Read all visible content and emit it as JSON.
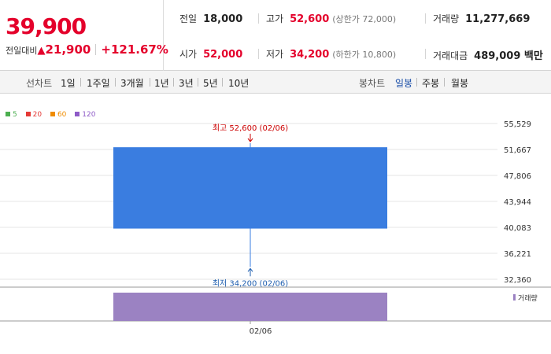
{
  "quote": {
    "price": "39,900",
    "change_label": "전일대비",
    "change_icon": "up-triangle-icon",
    "change_symbol": "▲",
    "change_amount": "21,900",
    "change_pct": "+121.67%"
  },
  "stats": {
    "prev_close": {
      "label": "전일",
      "value": "18,000"
    },
    "open": {
      "label": "시가",
      "value": "52,000"
    },
    "high": {
      "label": "고가",
      "value": "52,600",
      "sub": "(상한가 72,000)"
    },
    "low": {
      "label": "저가",
      "value": "34,200",
      "sub": "(하한가 10,800)"
    },
    "volume": {
      "label": "거래량",
      "value": "11,277,669"
    },
    "turnover": {
      "label": "거래대금",
      "value": "489,009 백만"
    }
  },
  "tabs": {
    "line_title": "선차트",
    "line_items": [
      "1일",
      "1주일",
      "3개월",
      "1년",
      "3년",
      "5년",
      "10년"
    ],
    "candle_title": "봉차트",
    "candle_items": [
      "일봉",
      "주봉",
      "월봉"
    ],
    "active_candle": "일봉"
  },
  "colors": {
    "up": "#e4002b",
    "candle": "#3a7de0",
    "volume": "#9b82c2",
    "high_marker": "#cc0000",
    "low_marker": "#1f5fb0",
    "grid": "#e4e4e4"
  },
  "chart_data": {
    "type": "candlestick",
    "legend": [
      {
        "name": "5",
        "color": "#4caf50"
      },
      {
        "name": "20",
        "color": "#e53935"
      },
      {
        "name": "60",
        "color": "#f08c00"
      },
      {
        "name": "120",
        "color": "#8e5bc7"
      }
    ],
    "y_ticks": [
      "55,529",
      "51,667",
      "47,806",
      "43,944",
      "40,083",
      "36,221",
      "32,360"
    ],
    "ylim": [
      32360,
      55529
    ],
    "candles": [
      {
        "date": "02/06",
        "open": 52000,
        "high": 52600,
        "low": 34200,
        "close": 39900
      }
    ],
    "high_annotation": "최고 52,600 (02/06)",
    "low_annotation": "최저 34,200 (02/06)",
    "volume": [
      {
        "date": "02/06",
        "value": 11277669
      }
    ],
    "volume_legend": "거래량",
    "x_ticks": [
      "02/06"
    ]
  }
}
